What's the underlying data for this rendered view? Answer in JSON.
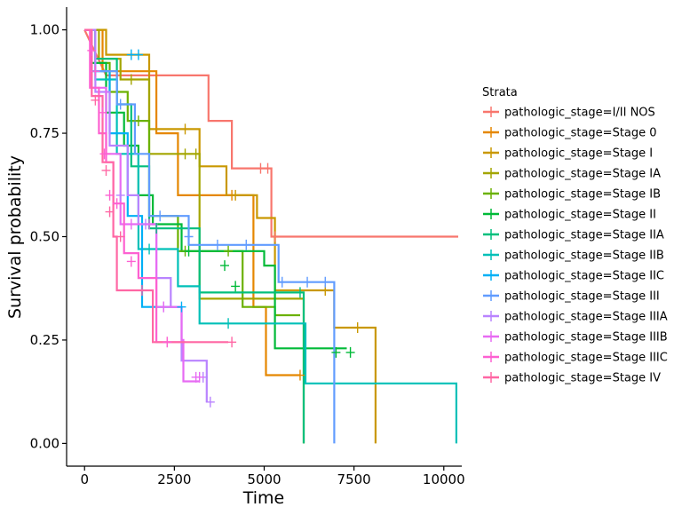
{
  "chart_data": {
    "type": "line",
    "step": true,
    "xlabel": "Time",
    "ylabel": "Survival probability",
    "xlim": [
      -500,
      10500
    ],
    "ylim": [
      -0.055,
      1.055
    ],
    "x_ticks": [
      0,
      2500,
      5000,
      7500,
      10000
    ],
    "x_tick_labels": [
      "0",
      "2500",
      "5000",
      "7500",
      "10000"
    ],
    "y_ticks": [
      0,
      0.25,
      0.5,
      0.75,
      1
    ],
    "y_tick_labels": [
      "0.00",
      "0.25",
      "0.50",
      "0.75",
      "1.00"
    ],
    "grid": false,
    "legend_title": "Strata",
    "legend_position": "right",
    "series": [
      {
        "name": "pathologic_stage=I/II NOS",
        "color": "#F8766D",
        "points": [
          [
            0,
            1
          ],
          [
            600,
            0.89
          ],
          [
            3450,
            0.89
          ],
          [
            3450,
            0.78
          ],
          [
            4100,
            0.78
          ],
          [
            4100,
            0.665
          ],
          [
            5200,
            0.665
          ],
          [
            5200,
            0.5
          ],
          [
            10400,
            0.5
          ]
        ],
        "censors": [
          [
            4900,
            0.665
          ],
          [
            5100,
            0.665
          ],
          [
            5300,
            0.5
          ]
        ]
      },
      {
        "name": "pathologic_stage=Stage 0",
        "color": "#E58700",
        "points": [
          [
            0,
            1
          ],
          [
            500,
            1
          ],
          [
            500,
            0.9
          ],
          [
            2000,
            0.9
          ],
          [
            2000,
            0.75
          ],
          [
            2600,
            0.75
          ],
          [
            2600,
            0.6
          ],
          [
            4700,
            0.6
          ],
          [
            4700,
            0.33
          ],
          [
            5050,
            0.33
          ],
          [
            5050,
            0.165
          ],
          [
            6000,
            0.165
          ]
        ],
        "censors": [
          [
            4100,
            0.6
          ],
          [
            6000,
            0.165
          ]
        ]
      },
      {
        "name": "pathologic_stage=Stage I",
        "color": "#C99800",
        "points": [
          [
            0,
            1
          ],
          [
            600,
            1
          ],
          [
            600,
            0.94
          ],
          [
            1800,
            0.94
          ],
          [
            1800,
            0.76
          ],
          [
            3200,
            0.76
          ],
          [
            3200,
            0.67
          ],
          [
            3950,
            0.67
          ],
          [
            3950,
            0.6
          ],
          [
            4800,
            0.6
          ],
          [
            4800,
            0.545
          ],
          [
            5300,
            0.545
          ],
          [
            5300,
            0.37
          ],
          [
            6950,
            0.37
          ],
          [
            6950,
            0.28
          ],
          [
            8100,
            0.28
          ],
          [
            8100,
            0
          ]
        ],
        "censors": [
          [
            2800,
            0.76
          ],
          [
            4200,
            0.6
          ],
          [
            6700,
            0.37
          ],
          [
            7600,
            0.28
          ]
        ]
      },
      {
        "name": "pathologic_stage=Stage IA",
        "color": "#A3A500",
        "points": [
          [
            0,
            1
          ],
          [
            400,
            1
          ],
          [
            400,
            0.93
          ],
          [
            1000,
            0.93
          ],
          [
            1000,
            0.88
          ],
          [
            1800,
            0.88
          ],
          [
            1800,
            0.7
          ],
          [
            3200,
            0.7
          ],
          [
            3200,
            0.35
          ],
          [
            6100,
            0.35
          ],
          [
            6100,
            0
          ]
        ],
        "censors": [
          [
            1300,
            0.88
          ],
          [
            2800,
            0.7
          ],
          [
            3100,
            0.7
          ]
        ]
      },
      {
        "name": "pathologic_stage=Stage IB",
        "color": "#6BB100",
        "points": [
          [
            0,
            1
          ],
          [
            300,
            1
          ],
          [
            300,
            0.92
          ],
          [
            700,
            0.92
          ],
          [
            700,
            0.85
          ],
          [
            1200,
            0.85
          ],
          [
            1200,
            0.78
          ],
          [
            1800,
            0.78
          ],
          [
            1800,
            0.55
          ],
          [
            2600,
            0.55
          ],
          [
            2600,
            0.465
          ],
          [
            4400,
            0.465
          ],
          [
            4400,
            0.33
          ],
          [
            5300,
            0.33
          ],
          [
            5300,
            0.31
          ],
          [
            6000,
            0.31
          ]
        ],
        "censors": [
          [
            1500,
            0.78
          ],
          [
            2800,
            0.465
          ],
          [
            4000,
            0.465
          ]
        ]
      },
      {
        "name": "pathologic_stage=Stage II",
        "color": "#00BA38",
        "points": [
          [
            0,
            1
          ],
          [
            200,
            1
          ],
          [
            200,
            0.92
          ],
          [
            600,
            0.92
          ],
          [
            600,
            0.8
          ],
          [
            1100,
            0.8
          ],
          [
            1100,
            0.72
          ],
          [
            1500,
            0.72
          ],
          [
            1500,
            0.6
          ],
          [
            1900,
            0.6
          ],
          [
            1900,
            0.53
          ],
          [
            2700,
            0.53
          ],
          [
            2700,
            0.465
          ],
          [
            5000,
            0.465
          ],
          [
            5000,
            0.43
          ],
          [
            5300,
            0.43
          ],
          [
            5300,
            0.23
          ],
          [
            7300,
            0.23
          ]
        ],
        "censors": [
          [
            2900,
            0.465
          ],
          [
            3900,
            0.43
          ],
          [
            4200,
            0.38
          ],
          [
            7000,
            0.22
          ],
          [
            7400,
            0.22
          ]
        ]
      },
      {
        "name": "pathologic_stage=Stage IIA",
        "color": "#00BF7D",
        "points": [
          [
            0,
            1
          ],
          [
            300,
            1
          ],
          [
            300,
            0.93
          ],
          [
            900,
            0.93
          ],
          [
            900,
            0.82
          ],
          [
            1300,
            0.82
          ],
          [
            1300,
            0.67
          ],
          [
            1800,
            0.67
          ],
          [
            1800,
            0.52
          ],
          [
            3200,
            0.52
          ],
          [
            3200,
            0.365
          ],
          [
            6100,
            0.365
          ],
          [
            6100,
            0
          ]
        ],
        "censors": [
          [
            2000,
            0.52
          ],
          [
            6000,
            0.365
          ]
        ]
      },
      {
        "name": "pathologic_stage=Stage IIB",
        "color": "#00C0B8",
        "points": [
          [
            0,
            1
          ],
          [
            300,
            1
          ],
          [
            300,
            0.88
          ],
          [
            900,
            0.88
          ],
          [
            900,
            0.7
          ],
          [
            1500,
            0.7
          ],
          [
            1500,
            0.47
          ],
          [
            2600,
            0.47
          ],
          [
            2600,
            0.38
          ],
          [
            3200,
            0.38
          ],
          [
            3200,
            0.29
          ],
          [
            6150,
            0.29
          ],
          [
            6150,
            0.145
          ],
          [
            10350,
            0.145
          ],
          [
            10350,
            0
          ]
        ],
        "censors": [
          [
            1800,
            0.47
          ],
          [
            4000,
            0.29
          ]
        ]
      },
      {
        "name": "pathologic_stage=Stage IIC",
        "color": "#00B0F6",
        "points": [
          [
            0,
            1
          ],
          [
            200,
            1
          ],
          [
            200,
            0.9
          ],
          [
            700,
            0.9
          ],
          [
            700,
            0.75
          ],
          [
            1200,
            0.75
          ],
          [
            1200,
            0.55
          ],
          [
            1600,
            0.55
          ],
          [
            1600,
            0.4
          ],
          [
            1600,
            0.33
          ],
          [
            2700,
            0.33
          ]
        ],
        "censors": [
          [
            1300,
            0.94
          ],
          [
            1500,
            0.94
          ],
          [
            2700,
            0.33
          ]
        ]
      },
      {
        "name": "pathologic_stage=Stage III",
        "color": "#619CFF",
        "points": [
          [
            0,
            1
          ],
          [
            300,
            1
          ],
          [
            300,
            0.9
          ],
          [
            900,
            0.9
          ],
          [
            900,
            0.82
          ],
          [
            1400,
            0.82
          ],
          [
            1400,
            0.7
          ],
          [
            1800,
            0.7
          ],
          [
            1800,
            0.55
          ],
          [
            2900,
            0.55
          ],
          [
            2900,
            0.48
          ],
          [
            5400,
            0.48
          ],
          [
            5400,
            0.39
          ],
          [
            6950,
            0.39
          ],
          [
            6950,
            0
          ]
        ],
        "censors": [
          [
            1000,
            0.82
          ],
          [
            2100,
            0.55
          ],
          [
            2900,
            0.5
          ],
          [
            3700,
            0.48
          ],
          [
            4500,
            0.48
          ],
          [
            5500,
            0.39
          ],
          [
            6200,
            0.39
          ],
          [
            6700,
            0.39
          ]
        ]
      },
      {
        "name": "pathologic_stage=Stage IIIA",
        "color": "#B983FF",
        "points": [
          [
            0,
            1
          ],
          [
            300,
            1
          ],
          [
            300,
            0.85
          ],
          [
            700,
            0.85
          ],
          [
            700,
            0.72
          ],
          [
            1200,
            0.72
          ],
          [
            1200,
            0.6
          ],
          [
            1500,
            0.6
          ],
          [
            1500,
            0.53
          ],
          [
            2000,
            0.53
          ],
          [
            2000,
            0.4
          ],
          [
            2400,
            0.4
          ],
          [
            2400,
            0.33
          ],
          [
            2700,
            0.33
          ],
          [
            2700,
            0.2
          ],
          [
            3400,
            0.2
          ],
          [
            3400,
            0.1
          ]
        ],
        "censors": [
          [
            1000,
            0.6
          ],
          [
            1700,
            0.53
          ],
          [
            2200,
            0.33
          ],
          [
            3300,
            0.16
          ],
          [
            3500,
            0.1
          ]
        ]
      },
      {
        "name": "pathologic_stage=Stage IIIB",
        "color": "#E76BF3",
        "points": [
          [
            0,
            1
          ],
          [
            200,
            1
          ],
          [
            200,
            0.86
          ],
          [
            600,
            0.86
          ],
          [
            600,
            0.7
          ],
          [
            1000,
            0.7
          ],
          [
            1000,
            0.53
          ],
          [
            2000,
            0.53
          ],
          [
            2000,
            0.33
          ],
          [
            2700,
            0.33
          ],
          [
            2700,
            0.25
          ],
          [
            2750,
            0.25
          ],
          [
            2750,
            0.15
          ],
          [
            3200,
            0.15
          ]
        ],
        "censors": [
          [
            1300,
            0.53
          ],
          [
            1800,
            0.53
          ],
          [
            2200,
            0.33
          ],
          [
            3100,
            0.16
          ],
          [
            3200,
            0.16
          ]
        ]
      },
      {
        "name": "pathologic_stage=Stage IIIC",
        "color": "#FD61D1",
        "points": [
          [
            0,
            1
          ],
          [
            150,
            1
          ],
          [
            150,
            0.86
          ],
          [
            400,
            0.86
          ],
          [
            400,
            0.75
          ],
          [
            600,
            0.75
          ],
          [
            600,
            0.68
          ],
          [
            800,
            0.68
          ],
          [
            800,
            0.58
          ],
          [
            1100,
            0.58
          ],
          [
            1100,
            0.46
          ],
          [
            1500,
            0.46
          ],
          [
            1500,
            0.4
          ],
          [
            2000,
            0.4
          ],
          [
            2000,
            0.245
          ],
          [
            2800,
            0.245
          ]
        ],
        "censors": [
          [
            200,
            0.95
          ],
          [
            300,
            0.9
          ],
          [
            500,
            0.8
          ],
          [
            550,
            0.7
          ],
          [
            600,
            0.7
          ],
          [
            700,
            0.6
          ],
          [
            900,
            0.58
          ],
          [
            1300,
            0.44
          ],
          [
            2300,
            0.245
          ]
        ]
      },
      {
        "name": "pathologic_stage=Stage IV",
        "color": "#FF67A4",
        "points": [
          [
            0,
            1
          ],
          [
            200,
            1
          ],
          [
            200,
            0.84
          ],
          [
            500,
            0.84
          ],
          [
            500,
            0.68
          ],
          [
            800,
            0.68
          ],
          [
            800,
            0.5
          ],
          [
            900,
            0.5
          ],
          [
            900,
            0.37
          ],
          [
            1900,
            0.37
          ],
          [
            1900,
            0.245
          ],
          [
            4000,
            0.245
          ]
        ],
        "censors": [
          [
            300,
            0.83
          ],
          [
            600,
            0.66
          ],
          [
            700,
            0.56
          ],
          [
            1000,
            0.5
          ],
          [
            1600,
            0.37
          ],
          [
            4100,
            0.245
          ]
        ]
      }
    ]
  }
}
